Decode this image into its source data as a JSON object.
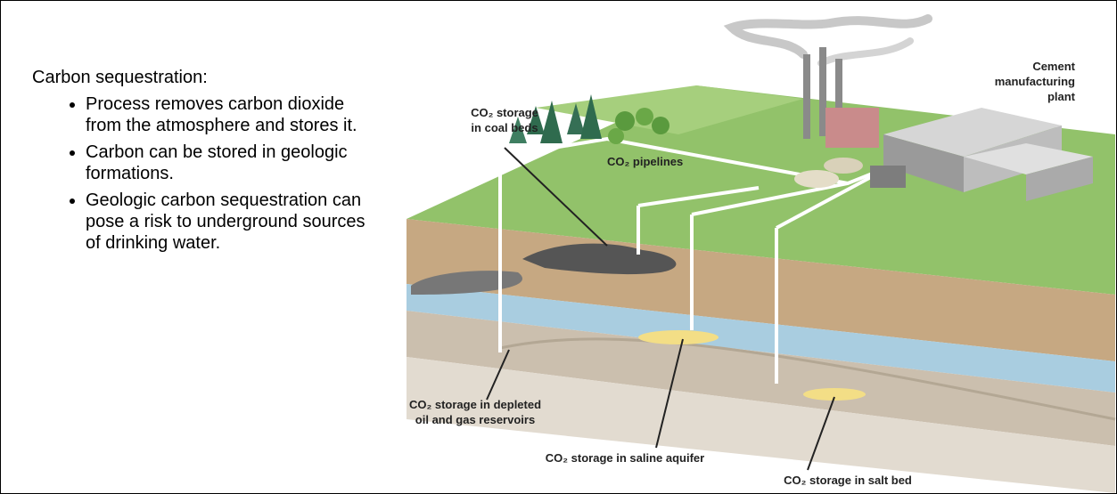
{
  "text": {
    "heading": "Carbon sequestration:",
    "bullets": [
      "Process removes carbon dioxide from the atmosphere and stores it.",
      "Carbon can be stored in geologic formations.",
      "Geologic carbon sequestration can pose a risk to underground sources of drinking water."
    ]
  },
  "diagram": {
    "labels": [
      {
        "lines": [
          "CO₂ storage",
          "in coal beds"
        ]
      },
      {
        "lines": [
          "Cement",
          "manufacturing",
          "plant"
        ]
      },
      {
        "lines": [
          "CO₂ pipelines"
        ]
      },
      {
        "lines": [
          "CO₂ storage in depleted",
          "oil and gas reservoirs"
        ]
      },
      {
        "lines": [
          "CO₂ storage in saline aquifer"
        ]
      },
      {
        "lines": [
          "CO₂ storage in salt bed"
        ]
      }
    ]
  }
}
